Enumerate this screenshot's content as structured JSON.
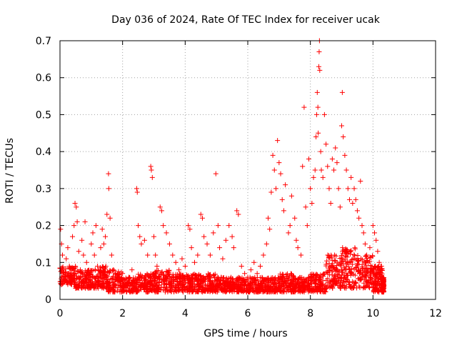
{
  "chart_data": {
    "type": "scatter",
    "title": "Day 036 of 2024, Rate Of TEC Index for receiver ucak",
    "xlabel": "GPS time / hours",
    "ylabel": "ROTI / TECUs",
    "xlim": [
      0,
      12
    ],
    "ylim": [
      0,
      0.7
    ],
    "xticks": [
      0,
      2,
      4,
      6,
      8,
      10,
      12
    ],
    "yticks": [
      0,
      0.1,
      0.2,
      0.3,
      0.4,
      0.5,
      0.6,
      0.7
    ],
    "xtick_labels": [
      "0",
      "2",
      "4",
      "6",
      "8",
      "10",
      "12"
    ],
    "ytick_labels": [
      "0",
      "0.1",
      "0.2",
      "0.3",
      "0.4",
      "0.5",
      "0.6",
      "0.7"
    ],
    "grid": true,
    "marker": "plus",
    "series": [
      {
        "name": "ROTI",
        "color": "#ff0000",
        "points": [
          [
            0.02,
            0.19
          ],
          [
            0.05,
            0.15
          ],
          [
            0.08,
            0.12
          ],
          [
            0.1,
            0.08
          ],
          [
            0.15,
            0.06
          ],
          [
            0.2,
            0.11
          ],
          [
            0.25,
            0.14
          ],
          [
            0.3,
            0.09
          ],
          [
            0.35,
            0.05
          ],
          [
            0.4,
            0.17
          ],
          [
            0.45,
            0.2
          ],
          [
            0.48,
            0.26
          ],
          [
            0.52,
            0.25
          ],
          [
            0.55,
            0.21
          ],
          [
            0.6,
            0.13
          ],
          [
            0.65,
            0.08
          ],
          [
            0.7,
            0.16
          ],
          [
            0.75,
            0.12
          ],
          [
            0.8,
            0.21
          ],
          [
            0.85,
            0.1
          ],
          [
            0.9,
            0.07
          ],
          [
            1.0,
            0.15
          ],
          [
            1.05,
            0.18
          ],
          [
            1.1,
            0.12
          ],
          [
            1.15,
            0.2
          ],
          [
            1.2,
            0.09
          ],
          [
            1.3,
            0.14
          ],
          [
            1.35,
            0.19
          ],
          [
            1.4,
            0.15
          ],
          [
            1.45,
            0.17
          ],
          [
            1.5,
            0.23
          ],
          [
            1.55,
            0.34
          ],
          [
            1.56,
            0.3
          ],
          [
            1.6,
            0.22
          ],
          [
            1.65,
            0.12
          ],
          [
            1.7,
            0.08
          ],
          [
            1.8,
            0.06
          ],
          [
            1.9,
            0.05
          ],
          [
            2.0,
            0.07
          ],
          [
            2.1,
            0.04
          ],
          [
            2.2,
            0.06
          ],
          [
            2.3,
            0.08
          ],
          [
            2.4,
            0.05
          ],
          [
            2.45,
            0.3
          ],
          [
            2.47,
            0.29
          ],
          [
            2.5,
            0.2
          ],
          [
            2.55,
            0.17
          ],
          [
            2.6,
            0.15
          ],
          [
            2.7,
            0.16
          ],
          [
            2.8,
            0.12
          ],
          [
            2.9,
            0.36
          ],
          [
            2.92,
            0.35
          ],
          [
            2.95,
            0.33
          ],
          [
            3.0,
            0.17
          ],
          [
            3.05,
            0.12
          ],
          [
            3.1,
            0.09
          ],
          [
            3.2,
            0.25
          ],
          [
            3.25,
            0.24
          ],
          [
            3.3,
            0.2
          ],
          [
            3.4,
            0.18
          ],
          [
            3.5,
            0.15
          ],
          [
            3.6,
            0.12
          ],
          [
            3.7,
            0.1
          ],
          [
            3.8,
            0.08
          ],
          [
            3.9,
            0.11
          ],
          [
            4.0,
            0.09
          ],
          [
            4.1,
            0.2
          ],
          [
            4.15,
            0.19
          ],
          [
            4.2,
            0.14
          ],
          [
            4.3,
            0.1
          ],
          [
            4.4,
            0.12
          ],
          [
            4.5,
            0.23
          ],
          [
            4.55,
            0.22
          ],
          [
            4.6,
            0.17
          ],
          [
            4.7,
            0.15
          ],
          [
            4.8,
            0.12
          ],
          [
            4.9,
            0.18
          ],
          [
            4.98,
            0.34
          ],
          [
            5.05,
            0.2
          ],
          [
            5.1,
            0.14
          ],
          [
            5.2,
            0.11
          ],
          [
            5.3,
            0.16
          ],
          [
            5.4,
            0.2
          ],
          [
            5.5,
            0.17
          ],
          [
            5.55,
            0.14
          ],
          [
            5.65,
            0.24
          ],
          [
            5.7,
            0.23
          ],
          [
            5.8,
            0.09
          ],
          [
            5.9,
            0.07
          ],
          [
            6.0,
            0.06
          ],
          [
            6.1,
            0.08
          ],
          [
            6.2,
            0.1
          ],
          [
            6.3,
            0.07
          ],
          [
            6.4,
            0.09
          ],
          [
            6.5,
            0.12
          ],
          [
            6.6,
            0.15
          ],
          [
            6.65,
            0.22
          ],
          [
            6.7,
            0.19
          ],
          [
            6.75,
            0.29
          ],
          [
            6.8,
            0.39
          ],
          [
            6.85,
            0.35
          ],
          [
            6.9,
            0.3
          ],
          [
            6.95,
            0.43
          ],
          [
            7.0,
            0.37
          ],
          [
            7.05,
            0.34
          ],
          [
            7.1,
            0.27
          ],
          [
            7.15,
            0.24
          ],
          [
            7.2,
            0.31
          ],
          [
            7.3,
            0.18
          ],
          [
            7.35,
            0.2
          ],
          [
            7.4,
            0.28
          ],
          [
            7.5,
            0.22
          ],
          [
            7.55,
            0.16
          ],
          [
            7.6,
            0.14
          ],
          [
            7.7,
            0.12
          ],
          [
            7.75,
            0.36
          ],
          [
            7.8,
            0.52
          ],
          [
            7.85,
            0.25
          ],
          [
            7.9,
            0.2
          ],
          [
            7.95,
            0.38
          ],
          [
            8.0,
            0.3
          ],
          [
            8.05,
            0.26
          ],
          [
            8.1,
            0.33
          ],
          [
            8.15,
            0.35
          ],
          [
            8.18,
            0.44
          ],
          [
            8.2,
            0.5
          ],
          [
            8.22,
            0.56
          ],
          [
            8.24,
            0.52
          ],
          [
            8.25,
            0.45
          ],
          [
            8.27,
            0.63
          ],
          [
            8.28,
            0.67
          ],
          [
            8.29,
            0.7
          ],
          [
            8.3,
            0.62
          ],
          [
            8.33,
            0.4
          ],
          [
            8.35,
            0.35
          ],
          [
            8.4,
            0.33
          ],
          [
            8.45,
            0.5
          ],
          [
            8.5,
            0.42
          ],
          [
            8.55,
            0.36
          ],
          [
            8.6,
            0.3
          ],
          [
            8.65,
            0.26
          ],
          [
            8.7,
            0.38
          ],
          [
            8.75,
            0.35
          ],
          [
            8.8,
            0.41
          ],
          [
            8.85,
            0.37
          ],
          [
            8.9,
            0.3
          ],
          [
            8.95,
            0.25
          ],
          [
            9.0,
            0.47
          ],
          [
            9.02,
            0.56
          ],
          [
            9.05,
            0.44
          ],
          [
            9.1,
            0.39
          ],
          [
            9.15,
            0.35
          ],
          [
            9.2,
            0.3
          ],
          [
            9.25,
            0.27
          ],
          [
            9.3,
            0.33
          ],
          [
            9.35,
            0.26
          ],
          [
            9.4,
            0.3
          ],
          [
            9.45,
            0.27
          ],
          [
            9.5,
            0.24
          ],
          [
            9.55,
            0.22
          ],
          [
            9.6,
            0.32
          ],
          [
            9.65,
            0.2
          ],
          [
            9.7,
            0.18
          ],
          [
            9.75,
            0.15
          ],
          [
            9.8,
            0.12
          ],
          [
            9.85,
            0.1
          ],
          [
            9.9,
            0.14
          ],
          [
            10.0,
            0.2
          ],
          [
            10.05,
            0.18
          ],
          [
            10.1,
            0.16
          ],
          [
            10.15,
            0.13
          ],
          [
            10.2,
            0.1
          ],
          [
            10.25,
            0.09
          ],
          [
            10.3,
            0.06
          ]
        ],
        "band_segments": [
          [
            0.0,
            0.04,
            0.09
          ],
          [
            0.5,
            0.03,
            0.08
          ],
          [
            1.0,
            0.03,
            0.09
          ],
          [
            1.5,
            0.02,
            0.08
          ],
          [
            2.0,
            0.02,
            0.06
          ],
          [
            2.5,
            0.02,
            0.07
          ],
          [
            3.0,
            0.02,
            0.08
          ],
          [
            3.5,
            0.02,
            0.07
          ],
          [
            4.0,
            0.02,
            0.07
          ],
          [
            4.5,
            0.02,
            0.07
          ],
          [
            5.0,
            0.02,
            0.06
          ],
          [
            5.5,
            0.02,
            0.06
          ],
          [
            6.0,
            0.02,
            0.06
          ],
          [
            6.5,
            0.02,
            0.06
          ],
          [
            7.0,
            0.02,
            0.07
          ],
          [
            7.5,
            0.02,
            0.06
          ],
          [
            8.0,
            0.02,
            0.07
          ],
          [
            8.5,
            0.03,
            0.12
          ],
          [
            9.0,
            0.03,
            0.14
          ],
          [
            9.5,
            0.03,
            0.12
          ],
          [
            10.0,
            0.02,
            0.09
          ],
          [
            10.3,
            0.02,
            0.06
          ]
        ]
      }
    ]
  }
}
